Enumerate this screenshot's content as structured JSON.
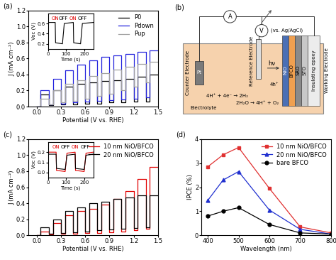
{
  "chart_data": [
    {
      "type": "line",
      "annotations": [
        "(a)"
      ],
      "x_label": "Potential (V vs. RHE)",
      "y_label": "J (mA cm⁻²)",
      "x": [
        0.0,
        0.05,
        0.05,
        0.15,
        0.15,
        0.2,
        0.2,
        0.3,
        0.3,
        0.35,
        0.35,
        0.45,
        0.45,
        0.5,
        0.5,
        0.6,
        0.6,
        0.65,
        0.65,
        0.75,
        0.75,
        0.8,
        0.8,
        0.9,
        0.9,
        0.95,
        0.95,
        1.05,
        1.05,
        1.1,
        1.1,
        1.2,
        1.2,
        1.25,
        1.25,
        1.35,
        1.35,
        1.4,
        1.4,
        1.5
      ],
      "series": [
        {
          "name": "P0",
          "color": "#000000",
          "line_style": "solid",
          "values": [
            0.0,
            0.0,
            0.15,
            0.15,
            0.02,
            0.02,
            0.2,
            0.2,
            0.03,
            0.03,
            0.25,
            0.25,
            0.03,
            0.03,
            0.28,
            0.28,
            0.04,
            0.04,
            0.3,
            0.3,
            0.04,
            0.04,
            0.32,
            0.32,
            0.05,
            0.05,
            0.33,
            0.33,
            0.05,
            0.05,
            0.35,
            0.35,
            0.06,
            0.06,
            0.37,
            0.37,
            0.06,
            0.06,
            0.4,
            0.4
          ]
        },
        {
          "name": "Pdown",
          "color": "#2222dd",
          "line_style": "solid",
          "values": [
            0.0,
            0.0,
            0.2,
            0.2,
            0.03,
            0.03,
            0.35,
            0.35,
            0.04,
            0.04,
            0.45,
            0.45,
            0.05,
            0.05,
            0.52,
            0.52,
            0.06,
            0.06,
            0.58,
            0.58,
            0.07,
            0.07,
            0.62,
            0.62,
            0.08,
            0.08,
            0.64,
            0.64,
            0.09,
            0.09,
            0.66,
            0.66,
            0.1,
            0.1,
            0.68,
            0.68,
            0.12,
            0.12,
            0.7,
            0.7
          ]
        },
        {
          "name": "Pup",
          "color": "#a0a0a0",
          "line_style": "solid",
          "values": [
            0.0,
            0.0,
            0.1,
            0.1,
            0.03,
            0.03,
            0.2,
            0.2,
            0.05,
            0.05,
            0.28,
            0.28,
            0.07,
            0.07,
            0.33,
            0.33,
            0.1,
            0.1,
            0.38,
            0.38,
            0.13,
            0.13,
            0.42,
            0.42,
            0.16,
            0.16,
            0.46,
            0.46,
            0.2,
            0.2,
            0.5,
            0.5,
            0.25,
            0.25,
            0.53,
            0.53,
            0.3,
            0.3,
            0.56,
            0.56
          ]
        }
      ],
      "xlim": [
        -0.1,
        1.5
      ],
      "xticks": [
        0.0,
        0.3,
        0.6,
        0.9,
        1.2,
        1.5
      ],
      "ylim": [
        0,
        1.2
      ],
      "yticks": [
        0.0,
        0.2,
        0.4,
        0.6,
        0.8,
        1.0,
        1.2
      ],
      "legend": "upper right"
    },
    {
      "type": "line",
      "x_label": "Time (s)",
      "y_label": "Voc (V)",
      "x": [
        0,
        40,
        42,
        80,
        90,
        140,
        142,
        180,
        190,
        250
      ],
      "series": [
        {
          "color": "#000000",
          "line_style": "solid",
          "values": [
            0.62,
            0.62,
            0.22,
            0.2,
            0.6,
            0.62,
            0.22,
            0.2,
            0.6,
            0.62
          ]
        }
      ],
      "xlim": [
        0,
        250
      ],
      "xticks": [
        0,
        100,
        200
      ],
      "ylim": [
        0.1,
        0.8
      ],
      "yticks": [
        0.2,
        0.4,
        0.6
      ],
      "annotations": [
        {
          "text": "ON",
          "x": 40,
          "y": 0.66,
          "color": "#e00000"
        },
        {
          "text": "OFF",
          "x": 85,
          "y": 0.66,
          "color": "#000000"
        },
        {
          "text": "ON",
          "x": 140,
          "y": 0.66,
          "color": "#e00000"
        },
        {
          "text": "OFF",
          "x": 190,
          "y": 0.66,
          "color": "#000000"
        }
      ]
    },
    {
      "type": "line",
      "annotations": [
        "(c)"
      ],
      "x_label": "Potential (V vs. RHE)",
      "y_label": "J (mA cm⁻²)",
      "x": [
        0.0,
        0.05,
        0.05,
        0.15,
        0.15,
        0.2,
        0.2,
        0.3,
        0.3,
        0.35,
        0.35,
        0.45,
        0.45,
        0.5,
        0.5,
        0.6,
        0.6,
        0.65,
        0.65,
        0.75,
        0.75,
        0.8,
        0.8,
        0.9,
        0.9,
        0.95,
        0.95,
        1.05,
        1.05,
        1.1,
        1.1,
        1.2,
        1.2,
        1.25,
        1.25,
        1.35,
        1.35,
        1.4,
        1.4,
        1.5
      ],
      "series": [
        {
          "name": "10 nm NiO/BFCO",
          "color": "#e00000",
          "line_style": "solid",
          "values": [
            0.0,
            0.0,
            0.05,
            0.05,
            0.01,
            0.01,
            0.15,
            0.15,
            0.02,
            0.02,
            0.25,
            0.25,
            0.02,
            0.02,
            0.3,
            0.3,
            0.03,
            0.03,
            0.33,
            0.33,
            0.03,
            0.03,
            0.38,
            0.38,
            0.04,
            0.04,
            0.45,
            0.45,
            0.05,
            0.05,
            0.55,
            0.55,
            0.06,
            0.06,
            0.7,
            0.7,
            0.08,
            0.08,
            0.85,
            0.85
          ]
        },
        {
          "name": "20 nm NiO/BFCO",
          "color": "#000000",
          "line_style": "solid",
          "values": [
            0.0,
            0.0,
            0.1,
            0.1,
            0.02,
            0.02,
            0.2,
            0.2,
            0.03,
            0.03,
            0.3,
            0.3,
            0.04,
            0.04,
            0.35,
            0.35,
            0.05,
            0.05,
            0.4,
            0.4,
            0.06,
            0.06,
            0.42,
            0.42,
            0.07,
            0.07,
            0.45,
            0.45,
            0.08,
            0.08,
            0.47,
            0.47,
            0.09,
            0.09,
            0.5,
            0.5,
            0.1,
            0.1,
            0.5,
            0.5
          ]
        }
      ],
      "xlim": [
        -0.1,
        1.5
      ],
      "xticks": [
        0.0,
        0.3,
        0.6,
        0.9,
        1.2,
        1.5
      ],
      "ylim": [
        0,
        1.2
      ],
      "yticks": [
        0.0,
        0.2,
        0.4,
        0.6,
        0.8,
        1.0,
        1.2
      ],
      "legend": "upper right"
    },
    {
      "type": "line",
      "x_label": "Time (s)",
      "y_label": "Voc (V)",
      "x": [
        0,
        45,
        47,
        95,
        105,
        150,
        152,
        200,
        210,
        250
      ],
      "series": [
        {
          "color": "#e00000",
          "line_style": "solid",
          "values": [
            0.2,
            0.2,
            0.02,
            0.01,
            0.19,
            0.2,
            0.02,
            0.01,
            0.19,
            0.2
          ]
        },
        {
          "color": "#000000",
          "line_style": "solid",
          "values": [
            0.18,
            0.18,
            0.04,
            0.03,
            0.17,
            0.18,
            0.04,
            0.03,
            0.17,
            0.18
          ]
        }
      ],
      "xlim": [
        0,
        250
      ],
      "xticks": [
        0,
        100,
        200
      ],
      "ylim": [
        -0.05,
        0.3
      ],
      "yticks": [
        0.0,
        0.1,
        0.2
      ],
      "annotations": [
        {
          "text": "ON",
          "x": 45,
          "y": 0.23,
          "color": "#e00000"
        },
        {
          "text": "OFF",
          "x": 95,
          "y": 0.23,
          "color": "#000000"
        },
        {
          "text": "ON",
          "x": 150,
          "y": 0.23,
          "color": "#e00000"
        },
        {
          "text": "OFF",
          "x": 205,
          "y": 0.23,
          "color": "#000000"
        }
      ]
    },
    {
      "type": "line",
      "annotations": [
        "(d)"
      ],
      "x_label": "Wavelength (nm)",
      "y_label": "IPCE (%)",
      "x": [
        400,
        450,
        500,
        600,
        700,
        800
      ],
      "series": [
        {
          "name": "10 nm NiO/BFCO",
          "color": "#e03030",
          "marker": "square",
          "line_style": "solid",
          "values": [
            2.85,
            3.35,
            3.65,
            1.95,
            0.35,
            0.1
          ]
        },
        {
          "name": "20 nm NiO/BFCO",
          "color": "#2030d0",
          "marker": "triangle",
          "line_style": "solid",
          "values": [
            1.45,
            2.3,
            2.65,
            1.05,
            0.25,
            0.05
          ]
        },
        {
          "name": "bare BFCO",
          "color": "#000000",
          "marker": "circle",
          "line_style": "solid",
          "values": [
            0.8,
            1.0,
            1.15,
            0.45,
            0.1,
            0.05
          ]
        }
      ],
      "xlim": [
        380,
        800
      ],
      "xticks": [
        400,
        500,
        600,
        700,
        800
      ],
      "ylim": [
        0,
        4
      ],
      "yticks": [
        0,
        1,
        2,
        3,
        4
      ],
      "legend": "upper right"
    }
  ],
  "diagram": {
    "annotations": [
      "(b)"
    ],
    "meters": {
      "current": "A",
      "voltage": "V",
      "voltage_reference": "(vs. Ag/AgCl)"
    },
    "electrodes": {
      "counter": "Counter Electrode",
      "counter_material": "Pt",
      "reference": "Reference Electrode",
      "working": "Working Electrode"
    },
    "layers": [
      "NiO",
      "BFCO",
      "SRO",
      "STO",
      "Insulating epoxy"
    ],
    "electrolyte": "Electrolyte",
    "reactions": {
      "cathode": "4H⁺ + 4e⁻ → 2H₂",
      "anode": "2H₂O → 4H⁺ + O₂",
      "holes": "4h⁺",
      "light": "hν"
    }
  }
}
